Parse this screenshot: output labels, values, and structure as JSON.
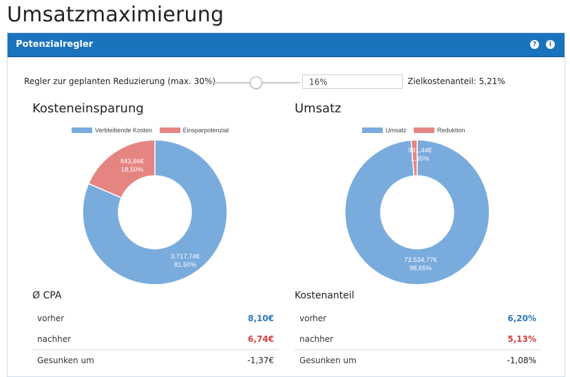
{
  "page": {
    "title": "Umsatzmaximierung"
  },
  "panel": {
    "title": "Potenzialregler",
    "help_icon": "question-circle-icon",
    "info_icon": "info-circle-icon"
  },
  "slider": {
    "label": "Regler zur geplanten Reduzierung (max. 30%)",
    "value_fraction": 0.533,
    "input_value": "16%",
    "ziel_label": "Zielkostenanteil:",
    "ziel_value": "5,21%"
  },
  "colors": {
    "blue": "#7aabdd",
    "red": "#e58582",
    "header": "#1a73bd"
  },
  "left": {
    "title": "Kosteneinsparung",
    "legend": [
      "Verbleibende Kosten",
      "Einsparpotenzial"
    ],
    "chart_data": {
      "type": "pie",
      "categories": [
        "Verbleibende Kosten",
        "Einsparpotenzial"
      ],
      "values": [
        81.5,
        18.5
      ],
      "amounts": [
        "3.717,74€",
        "843,66€"
      ],
      "percents": [
        "81,50%",
        "18,50%"
      ]
    },
    "stats_title": "Ø CPA",
    "stats": [
      {
        "label": "vorher",
        "value": "8,10€"
      },
      {
        "label": "nachher",
        "value": "6,74€"
      },
      {
        "label": "Gesunken um",
        "value": "-1,37€"
      }
    ]
  },
  "right": {
    "title": "Umsatz",
    "legend": [
      "Umsatz",
      "Reduktion"
    ],
    "chart_data": {
      "type": "pie",
      "categories": [
        "Umsatz",
        "Reduktion"
      ],
      "values": [
        98.65,
        1.35
      ],
      "amounts": [
        "72.534,77€",
        "991,44€"
      ],
      "percents": [
        "98,65%",
        "1,35%"
      ]
    },
    "stats_title": "Kostenanteil",
    "stats": [
      {
        "label": "vorher",
        "value": "6,20%"
      },
      {
        "label": "nachher",
        "value": "5,13%"
      },
      {
        "label": "Gesunken um",
        "value": "-1,08%"
      }
    ]
  }
}
